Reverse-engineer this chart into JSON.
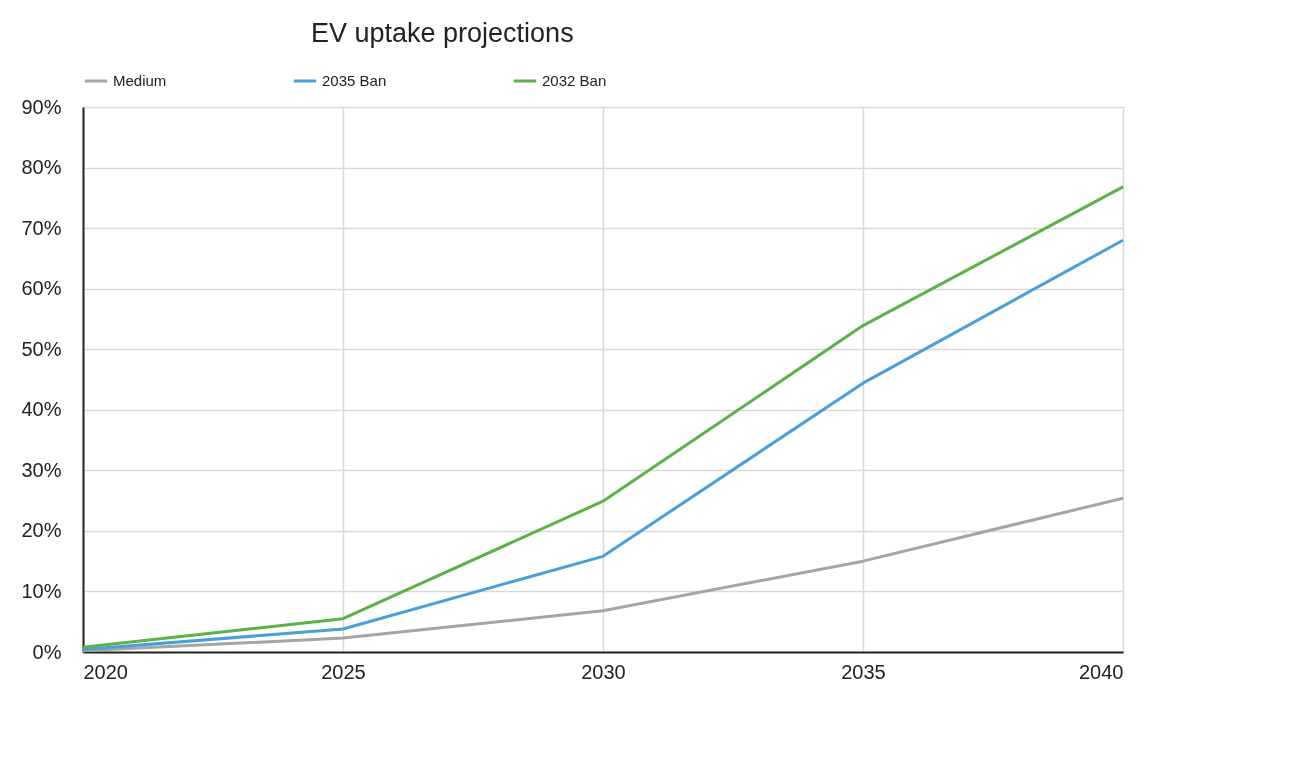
{
  "chart_data": {
    "type": "line",
    "title": "EV uptake projections",
    "x": [
      2020,
      2025,
      2030,
      2035,
      2040
    ],
    "xlim": [
      2020,
      2040
    ],
    "xticks": [
      2020,
      2025,
      2030,
      2035,
      2040
    ],
    "ylim": [
      0,
      90
    ],
    "yticks": [
      {
        "value": 0,
        "label": "0%"
      },
      {
        "value": 10,
        "label": "10%"
      },
      {
        "value": 20,
        "label": "20%"
      },
      {
        "value": 30,
        "label": "30%"
      },
      {
        "value": 40,
        "label": "40%"
      },
      {
        "value": 50,
        "label": "50%"
      },
      {
        "value": 60,
        "label": "60%"
      },
      {
        "value": 70,
        "label": "70%"
      },
      {
        "value": 80,
        "label": "80%"
      },
      {
        "value": 90,
        "label": "90%"
      }
    ],
    "series": [
      {
        "name": "Medium",
        "color": "#a5a5a5",
        "values": [
          0.2,
          2.3,
          6.8,
          15,
          25.4
        ]
      },
      {
        "name": "2035 Ban",
        "color": "#4a9fd8",
        "values": [
          0.4,
          3.8,
          15.8,
          44.4,
          68
        ]
      },
      {
        "name": "2032 Ban",
        "color": "#5cb246",
        "values": [
          0.8,
          5.5,
          24.9,
          53.9,
          76.8
        ]
      }
    ],
    "grid": true,
    "legend": "top",
    "marker": "none",
    "line_style": "solid"
  }
}
